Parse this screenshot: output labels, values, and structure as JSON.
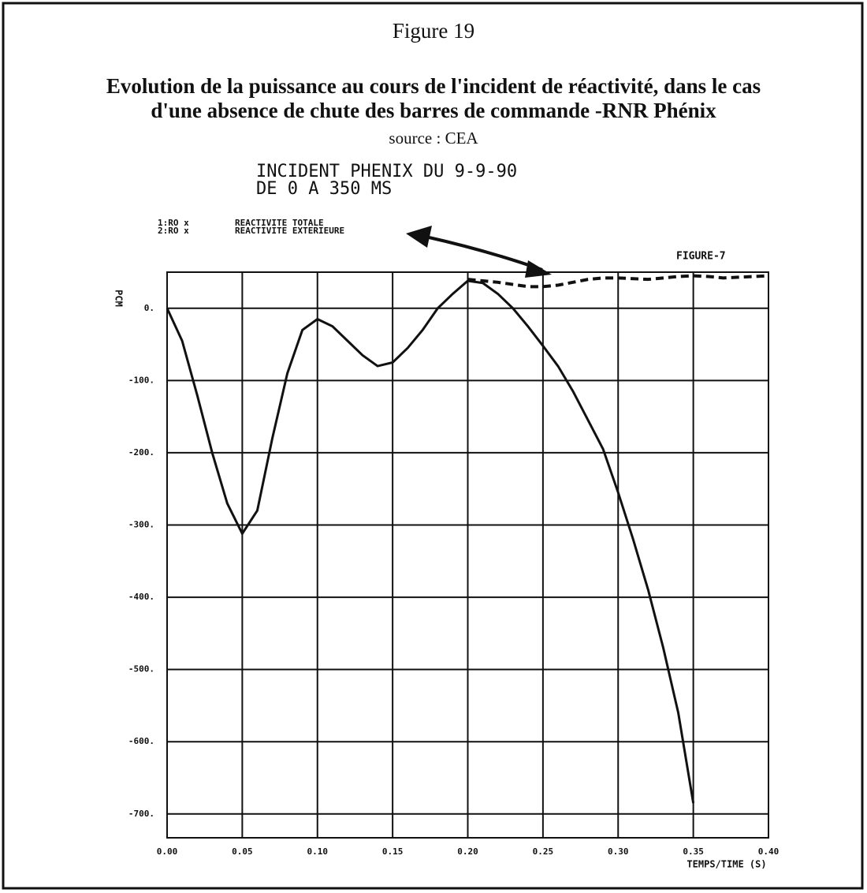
{
  "chart_data": {
    "type": "line",
    "figure_label": "Figure 19",
    "title_lines": [
      "Evolution de la puissance au cours de l'incident de réactivité, dans le cas",
      "d'une absence de chute des barres de commande -RNR Phénix"
    ],
    "source": "source : CEA",
    "subtitle_lines": [
      "INCIDENT PHENIX DU 9-9-90",
      "DE 0 A 350 MS"
    ],
    "figure_tag": "FIGURE-7",
    "ylabel": "PCM",
    "xlabel": "TEMPS/TIME (S)",
    "x": [
      0,
      0.01,
      0.02,
      0.03,
      0.04,
      0.05,
      0.06,
      0.07,
      0.08,
      0.09,
      0.1,
      0.11,
      0.12,
      0.13,
      0.14,
      0.15,
      0.16,
      0.17,
      0.18,
      0.19,
      0.2,
      0.21,
      0.22,
      0.23,
      0.24,
      0.25,
      0.26,
      0.27,
      0.28,
      0.29,
      0.3,
      0.31,
      0.32,
      0.33,
      0.34,
      0.35,
      0.36,
      0.37,
      0.38,
      0.39,
      0.4
    ],
    "series": [
      {
        "name": "REACTIVITE TOTALE",
        "key": "1:RO x",
        "color": "#111111",
        "dashed": false,
        "values": [
          0,
          -45,
          -120,
          -200,
          -270,
          -312,
          -280,
          -180,
          -90,
          -30,
          -15,
          -25,
          -45,
          -65,
          -80,
          -75,
          -55,
          -30,
          0,
          20,
          38,
          35,
          20,
          0,
          -25,
          -52,
          -80,
          -115,
          -155,
          -195,
          -255,
          -320,
          -390,
          -470,
          -560,
          -685,
          null,
          null,
          null,
          null,
          null
        ]
      },
      {
        "name": "REACTIVITE EXTERIEURE",
        "key": "2:RO x",
        "color": "#111111",
        "dashed": true,
        "values": [
          null,
          null,
          null,
          null,
          null,
          null,
          null,
          null,
          null,
          null,
          null,
          null,
          null,
          null,
          null,
          null,
          null,
          null,
          null,
          null,
          40,
          38,
          36,
          33,
          30,
          30,
          32,
          36,
          40,
          42,
          42,
          41,
          40,
          42,
          44,
          45,
          44,
          42,
          43,
          44,
          45
        ]
      }
    ],
    "xlim": [
      0,
      0.4
    ],
    "ylim": [
      -733,
      50
    ],
    "xticks": [
      {
        "value": 0,
        "label": "0.00"
      },
      {
        "value": 0.05,
        "label": "0.05"
      },
      {
        "value": 0.1,
        "label": "0.10"
      },
      {
        "value": 0.15,
        "label": "0.15"
      },
      {
        "value": 0.2,
        "label": "0.20"
      },
      {
        "value": 0.25,
        "label": "0.25"
      },
      {
        "value": 0.3,
        "label": "0.30"
      },
      {
        "value": 0.35,
        "label": "0.35"
      },
      {
        "value": 0.4,
        "label": "0.40"
      }
    ],
    "yticks": [
      {
        "value": 0,
        "label": "0."
      },
      {
        "value": -100,
        "label": "-100."
      },
      {
        "value": -200,
        "label": "-200."
      },
      {
        "value": -300,
        "label": "-300."
      },
      {
        "value": -400,
        "label": "-400."
      },
      {
        "value": -500,
        "label": "-500."
      },
      {
        "value": -600,
        "label": "-600."
      },
      {
        "value": -700,
        "label": "-700."
      }
    ],
    "grid": true
  }
}
